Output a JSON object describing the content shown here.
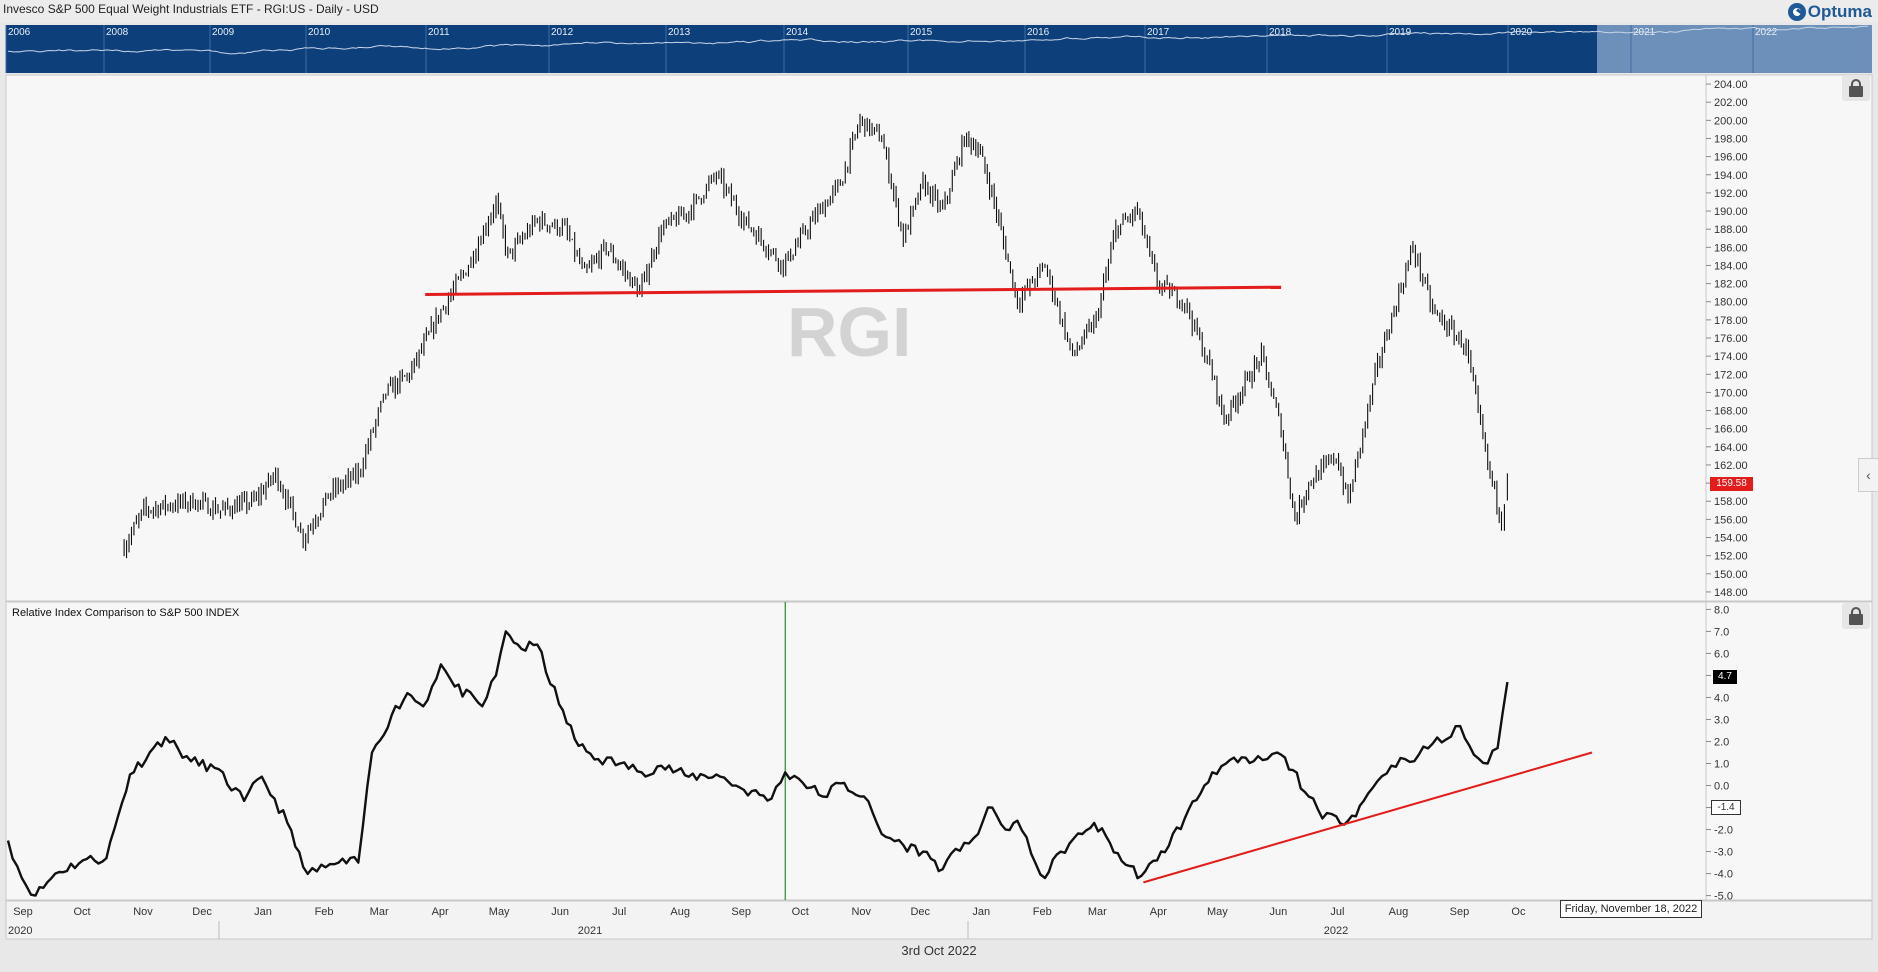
{
  "header": {
    "title": "Invesco S&P 500 Equal Weight Industrials ETF - RGI:US - Daily - USD",
    "logo_text": "Optuma"
  },
  "navigator": {
    "years": [
      "2006",
      "2008",
      "2009",
      "2010",
      "2011",
      "2012",
      "2013",
      "2014",
      "2015",
      "2016",
      "2017",
      "2018",
      "2019",
      "2020",
      "2021",
      "2022"
    ],
    "background_color": "#0d3f7a",
    "selection_color": "#7e9fc5"
  },
  "watermark": "RGI",
  "price_badge": "159.58",
  "indicator_badge": "4.7",
  "indicator_neg_badge": "-1.4",
  "hover_date": "Friday, November 18, 2022",
  "footer_date": "3rd Oct 2022",
  "x_axis": {
    "months": [
      "Sep",
      "Oct",
      "Nov",
      "Dec",
      "Jan",
      "Feb",
      "Mar",
      "Apr",
      "May",
      "Jun",
      "Jul",
      "Aug",
      "Sep",
      "Oct",
      "Nov",
      "Dec",
      "Jan",
      "Feb",
      "Mar",
      "Apr",
      "May",
      "Jun",
      "Jul",
      "Aug",
      "Sep",
      "Oc"
    ],
    "years": [
      "2020",
      "2021",
      "2022"
    ]
  },
  "chart_data": [
    {
      "type": "ohlc",
      "title": "Invesco S&P 500 Equal Weight Industrials ETF - RGI:US - Daily - USD",
      "y_ticks": [
        "148.00",
        "150.00",
        "152.00",
        "154.00",
        "156.00",
        "158.00",
        "160.00",
        "162.00",
        "164.00",
        "166.00",
        "168.00",
        "170.00",
        "172.00",
        "174.00",
        "176.00",
        "178.00",
        "180.00",
        "182.00",
        "184.00",
        "186.00",
        "188.00",
        "190.00",
        "192.00",
        "194.00",
        "196.00",
        "198.00",
        "200.00",
        "202.00",
        "204.00"
      ],
      "ylim": [
        147,
        205
      ],
      "series": [
        {
          "values": [
            [
              "2020-10-30",
              153
            ],
            [
              "2020-11-09",
              157
            ],
            [
              "2020-11-20",
              157.5
            ],
            [
              "2020-12-04",
              158
            ],
            [
              "2020-12-18",
              157
            ],
            [
              "2021-01-04",
              158
            ],
            [
              "2021-01-15",
              161
            ],
            [
              "2021-01-29",
              154
            ],
            [
              "2021-02-12",
              159
            ],
            [
              "2021-02-26",
              161
            ],
            [
              "2021-03-12",
              170
            ],
            [
              "2021-03-24",
              172
            ],
            [
              "2021-04-09",
              179
            ],
            [
              "2021-04-23",
              184
            ],
            [
              "2021-05-07",
              191
            ],
            [
              "2021-05-13",
              185
            ],
            [
              "2021-05-28",
              189
            ],
            [
              "2021-06-11",
              188
            ],
            [
              "2021-06-21",
              183
            ],
            [
              "2021-07-02",
              186
            ],
            [
              "2021-07-19",
              181
            ],
            [
              "2021-07-30",
              188
            ],
            [
              "2021-08-13",
              190
            ],
            [
              "2021-08-27",
              194
            ],
            [
              "2021-09-10",
              189
            ],
            [
              "2021-09-30",
              184
            ],
            [
              "2021-10-15",
              189
            ],
            [
              "2021-10-29",
              193
            ],
            [
              "2021-11-08",
              200
            ],
            [
              "2021-11-19",
              198
            ],
            [
              "2021-11-30",
              187
            ],
            [
              "2021-12-10",
              193
            ],
            [
              "2021-12-20",
              190
            ],
            [
              "2021-12-31",
              198
            ],
            [
              "2022-01-07",
              197
            ],
            [
              "2022-01-14",
              192
            ],
            [
              "2022-01-27",
              180
            ],
            [
              "2022-02-10",
              184
            ],
            [
              "2022-02-24",
              174
            ],
            [
              "2022-03-08",
              178
            ],
            [
              "2022-03-18",
              188
            ],
            [
              "2022-03-29",
              190
            ],
            [
              "2022-04-08",
              182
            ],
            [
              "2022-04-22",
              180
            ],
            [
              "2022-05-06",
              172
            ],
            [
              "2022-05-12",
              167
            ],
            [
              "2022-05-31",
              174
            ],
            [
              "2022-06-10",
              166
            ],
            [
              "2022-06-17",
              156
            ],
            [
              "2022-06-24",
              160
            ],
            [
              "2022-07-08",
              163
            ],
            [
              "2022-07-14",
              158
            ],
            [
              "2022-07-29",
              173
            ],
            [
              "2022-08-16",
              186
            ],
            [
              "2022-08-26",
              179
            ],
            [
              "2022-09-12",
              175
            ],
            [
              "2022-09-23",
              162
            ],
            [
              "2022-09-30",
              156
            ],
            [
              "2022-10-03",
              159.58
            ]
          ]
        }
      ],
      "trendline": {
        "from": [
          "2021-04-01",
          180.8
        ],
        "to": [
          "2022-06-10",
          181.6
        ],
        "color": "#e31c1c"
      }
    },
    {
      "type": "line",
      "title": "Relative Index Comparison to S&P 500 INDEX",
      "y_ticks": [
        "-5.0",
        "-4.0",
        "-3.0",
        "-2.0",
        "-1.0",
        "0.0",
        "1.0",
        "2.0",
        "3.0",
        "4.0",
        "5.0",
        "6.0",
        "7.0",
        "8.0"
      ],
      "ylim": [
        -5.2,
        8.2
      ],
      "series": [
        {
          "values": [
            [
              "2020-09-01",
              -2.5
            ],
            [
              "2020-09-08",
              -4.2
            ],
            [
              "2020-09-15",
              -5.0
            ],
            [
              "2020-09-25",
              -4.0
            ],
            [
              "2020-10-09",
              -3.4
            ],
            [
              "2020-10-21",
              -3.3
            ],
            [
              "2020-11-02",
              0.5
            ],
            [
              "2020-11-12",
              1.5
            ],
            [
              "2020-11-20",
              2.2
            ],
            [
              "2020-12-03",
              1.1
            ],
            [
              "2020-12-15",
              0.8
            ],
            [
              "2020-12-30",
              -0.7
            ],
            [
              "2021-01-08",
              0.4
            ],
            [
              "2021-01-21",
              -1.7
            ],
            [
              "2021-01-29",
              -3.7
            ],
            [
              "2021-02-05",
              -3.9
            ],
            [
              "2021-02-16",
              -3.5
            ],
            [
              "2021-02-26",
              -3.5
            ],
            [
              "2021-03-05",
              1.5
            ],
            [
              "2021-03-15",
              3.2
            ],
            [
              "2021-03-23",
              4.2
            ],
            [
              "2021-03-31",
              3.6
            ],
            [
              "2021-04-09",
              5.5
            ],
            [
              "2021-04-16",
              4.5
            ],
            [
              "2021-04-30",
              3.6
            ],
            [
              "2021-05-07",
              5.0
            ],
            [
              "2021-05-12",
              7.0
            ],
            [
              "2021-05-20",
              6.2
            ],
            [
              "2021-05-28",
              6.4
            ],
            [
              "2021-06-08",
              3.7
            ],
            [
              "2021-06-18",
              1.8
            ],
            [
              "2021-06-28",
              1.2
            ],
            [
              "2021-07-09",
              1.0
            ],
            [
              "2021-07-20",
              0.6
            ],
            [
              "2021-07-30",
              0.9
            ],
            [
              "2021-08-13",
              0.4
            ],
            [
              "2021-08-27",
              0.5
            ],
            [
              "2021-09-10",
              -0.2
            ],
            [
              "2021-09-24",
              -0.6
            ],
            [
              "2021-10-01",
              0.6
            ],
            [
              "2021-10-08",
              0.3
            ],
            [
              "2021-10-20",
              -0.5
            ],
            [
              "2021-10-29",
              0.1
            ],
            [
              "2021-11-10",
              -0.5
            ],
            [
              "2021-11-19",
              -2.2
            ],
            [
              "2021-11-30",
              -2.7
            ],
            [
              "2021-12-10",
              -3.0
            ],
            [
              "2021-12-20",
              -3.8
            ],
            [
              "2021-12-31",
              -2.6
            ],
            [
              "2022-01-07",
              -2.2
            ],
            [
              "2022-01-12",
              -1.0
            ],
            [
              "2022-01-21",
              -2.0
            ],
            [
              "2022-01-27",
              -1.6
            ],
            [
              "2022-02-03",
              -3.1
            ],
            [
              "2022-02-10",
              -4.2
            ],
            [
              "2022-02-18",
              -3.0
            ],
            [
              "2022-03-01",
              -2.2
            ],
            [
              "2022-03-07",
              -1.7
            ],
            [
              "2022-03-15",
              -2.6
            ],
            [
              "2022-03-23",
              -3.6
            ],
            [
              "2022-03-31",
              -4.1
            ],
            [
              "2022-04-08",
              -3.4
            ],
            [
              "2022-04-22",
              -1.5
            ],
            [
              "2022-05-06",
              0.6
            ],
            [
              "2022-05-13",
              1.0
            ],
            [
              "2022-05-27",
              1.1
            ],
            [
              "2022-06-03",
              1.2
            ],
            [
              "2022-06-08",
              1.5
            ],
            [
              "2022-06-16",
              0.7
            ],
            [
              "2022-06-24",
              -0.5
            ],
            [
              "2022-07-01",
              -1.5
            ],
            [
              "2022-07-08",
              -1.4
            ],
            [
              "2022-07-14",
              -1.6
            ],
            [
              "2022-07-22",
              -0.7
            ],
            [
              "2022-07-29",
              0.2
            ],
            [
              "2022-08-05",
              0.9
            ],
            [
              "2022-08-12",
              1.2
            ],
            [
              "2022-08-19",
              1.4
            ],
            [
              "2022-08-26",
              1.9
            ],
            [
              "2022-09-02",
              2.1
            ],
            [
              "2022-09-09",
              2.7
            ],
            [
              "2022-09-16",
              1.4
            ],
            [
              "2022-09-23",
              1.0
            ],
            [
              "2022-09-28",
              1.7
            ],
            [
              "2022-10-03",
              4.7
            ]
          ]
        }
      ],
      "trendline": {
        "from": [
          "2022-04-01",
          -4.4
        ],
        "to": [
          "2022-11-15",
          1.5
        ],
        "color": "#e31c1c"
      },
      "marker_line": {
        "date": "2021-10-01",
        "color": "#2a8a2a"
      }
    }
  ]
}
